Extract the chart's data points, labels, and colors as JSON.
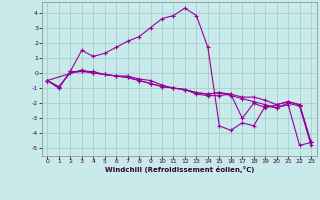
{
  "xlabel": "Windchill (Refroidissement éolien,°C)",
  "background_color": "#c8eaea",
  "grid_color": "#a0c8c8",
  "line_color": "#990099",
  "xlim": [
    -0.5,
    23.5
  ],
  "ylim": [
    -5.5,
    4.7
  ],
  "xticks": [
    0,
    1,
    2,
    3,
    4,
    5,
    6,
    7,
    8,
    9,
    10,
    11,
    12,
    13,
    14,
    15,
    16,
    17,
    18,
    19,
    20,
    21,
    22,
    23
  ],
  "yticks": [
    -5,
    -4,
    -3,
    -2,
    -1,
    0,
    1,
    2,
    3,
    4
  ],
  "line1_x": [
    0,
    1,
    2,
    3,
    4,
    5,
    6,
    7,
    8,
    9,
    10,
    11,
    12,
    13,
    14,
    15,
    16,
    17,
    18,
    19,
    20,
    21,
    22,
    23
  ],
  "line1_y": [
    -0.5,
    -1.0,
    0.1,
    1.5,
    1.1,
    1.3,
    1.7,
    2.1,
    2.4,
    3.0,
    3.6,
    3.8,
    4.3,
    3.8,
    1.7,
    -3.5,
    -3.8,
    -3.3,
    -3.5,
    -2.2,
    -2.3,
    -2.1,
    -4.8,
    -4.6
  ],
  "line2_x": [
    0,
    1,
    2,
    3,
    4,
    5,
    6,
    7,
    8,
    9,
    10,
    11,
    12,
    13,
    14,
    15,
    16,
    17,
    18,
    19,
    20,
    21,
    22,
    23
  ],
  "line2_y": [
    -0.5,
    -0.9,
    0.0,
    0.1,
    0.1,
    -0.1,
    -0.2,
    -0.3,
    -0.5,
    -0.7,
    -0.9,
    -1.0,
    -1.1,
    -1.3,
    -1.4,
    -1.3,
    -1.4,
    -1.6,
    -1.6,
    -1.8,
    -2.1,
    -1.9,
    -2.1,
    -4.6
  ],
  "line3_x": [
    0,
    1,
    2,
    3,
    4,
    5,
    6,
    7,
    8,
    9,
    10,
    11,
    12,
    13,
    14,
    15,
    16,
    17,
    18,
    19,
    20,
    21,
    22,
    23
  ],
  "line3_y": [
    -0.5,
    -1.0,
    0.1,
    0.1,
    0.0,
    -0.1,
    -0.2,
    -0.3,
    -0.5,
    -0.7,
    -0.9,
    -1.0,
    -1.1,
    -1.3,
    -1.4,
    -1.3,
    -1.5,
    -1.7,
    -1.9,
    -2.1,
    -2.3,
    -2.0,
    -2.2,
    -4.8
  ],
  "line4_x": [
    0,
    3,
    4,
    5,
    6,
    7,
    8,
    9,
    10,
    11,
    12,
    13,
    14,
    15,
    16,
    17,
    18,
    19,
    20,
    21,
    22,
    23
  ],
  "line4_y": [
    -0.5,
    0.2,
    0.0,
    -0.1,
    -0.2,
    -0.2,
    -0.4,
    -0.5,
    -0.8,
    -1.0,
    -1.1,
    -1.4,
    -1.5,
    -1.5,
    -1.4,
    -3.0,
    -2.0,
    -2.3,
    -2.1,
    -1.9,
    -2.1,
    -4.6
  ]
}
